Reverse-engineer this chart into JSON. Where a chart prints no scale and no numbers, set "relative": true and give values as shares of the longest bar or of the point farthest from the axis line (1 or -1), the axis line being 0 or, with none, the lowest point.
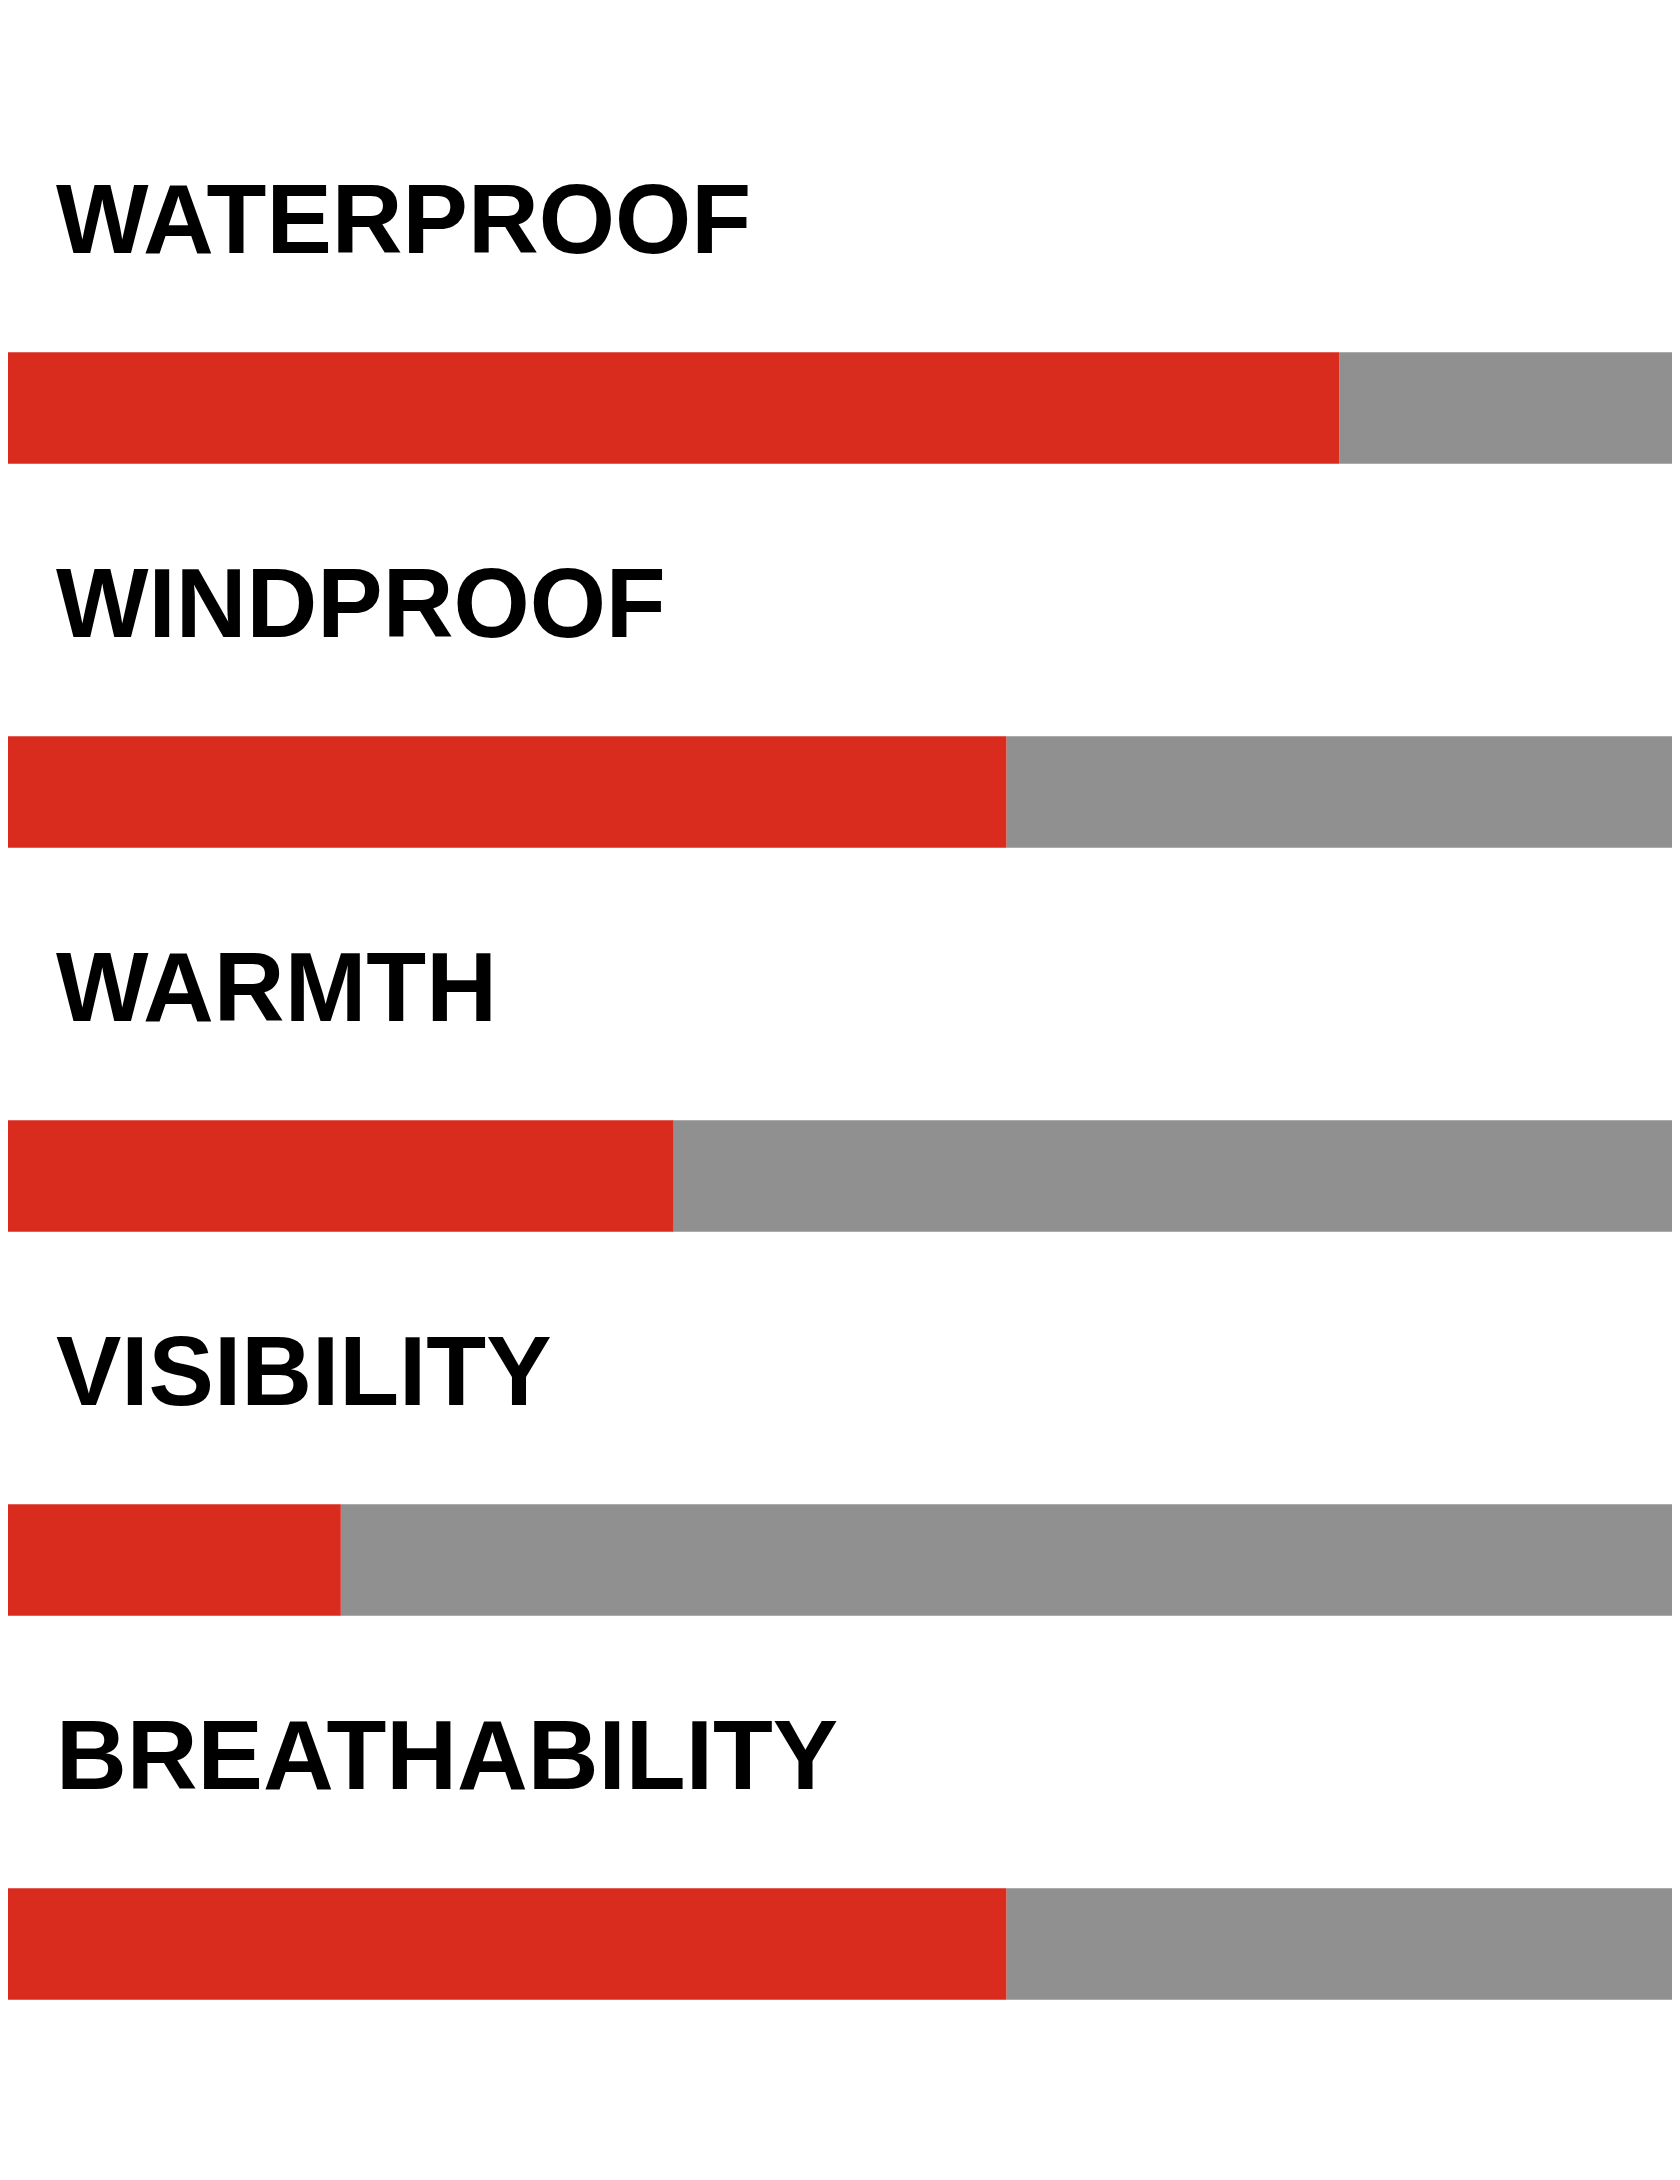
{
  "chart_data": {
    "type": "bar",
    "orientation": "horizontal",
    "stacked": true,
    "relative": true,
    "legend": false,
    "categories": [
      "WATERPROOF",
      "WINDPROOF",
      "WARMTH",
      "VISIBILITY",
      "BREATHABILITY"
    ],
    "series": [
      {
        "color": "#d92b1e",
        "values": [
          0.8,
          0.6,
          0.4,
          0.2,
          0.6
        ]
      },
      {
        "color": "#909090",
        "values": [
          0.2,
          0.4,
          0.6,
          0.8,
          0.4
        ]
      }
    ]
  }
}
